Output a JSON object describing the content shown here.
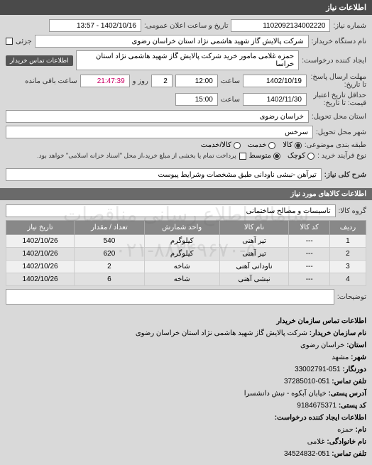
{
  "watermark": {
    "line1": "سامانه اطلاع رسانی مناقصات",
    "line2": "۰۲۱-۸۸۳۴۹۶۷۰-۵"
  },
  "header": {
    "title": "اطلاعات نیاز"
  },
  "top": {
    "need_number_label": "شماره نیاز:",
    "need_number": "1102092134002220",
    "announce_label": "تاریخ و ساعت اعلان عمومی:",
    "announce_value": "1402/10/16 - 13:57",
    "buyer_label": "نام دستگاه خریدار:",
    "buyer_value": "شرکت پالایش گاز شهید هاشمی نژاد    استان خراسان رضوی",
    "partial_label": "جزئی",
    "requester_label": "ایجاد کننده درخواست:",
    "requester_value": "حمزه غلامی مامور خرید شرکت پالایش گاز شهید هاشمی نژاد    استان خراسا",
    "buyer_contact_tag": "اطلاعات تماس خریدار",
    "deadline_recv_label": "مهلت ارسال پاسخ: تا تاریخ:",
    "deadline_recv_date": "1402/10/19",
    "time_label": "ساعت",
    "deadline_recv_time": "12:00",
    "days_label": "روز و",
    "days_value": "2",
    "remain_label": "ساعت باقی مانده",
    "remain_value": "21:47:39",
    "valid_until_label": "حداقل تاریخ اعتبار قیمت: تا تاریخ:",
    "valid_until_date": "1402/11/30",
    "valid_until_time": "15:00",
    "delivery_province_label": "استان محل تحویل:",
    "delivery_province": "خراسان رضوی",
    "delivery_city_label": "شهر محل تحویل:",
    "delivery_city": "سرخس",
    "category_label": "طبقه بندی موضوعی:",
    "cat_goods": "کالا",
    "cat_service": "خدمت",
    "cat_both": "کالا/خدمت",
    "purchase_type_label": "نوع فرآیند خرید :",
    "pt_small": "کوچک",
    "pt_medium": "متوسط",
    "pt_note": "پرداخت تمام یا بخشی از مبلغ خرید،از محل \"اسناد خزانه اسلامی\" خواهد بود.",
    "desc_label": "شرح کلی نیاز:",
    "desc_value": "تیرآهن -نبشی ناودانی طبق مشخصات وشرایط پیوست"
  },
  "goods_header": "اطلاعات کالاهای مورد نیاز",
  "group_label": "گروه کالا:",
  "group_value": "تاسیسات و مصالح ساختمانی",
  "table": {
    "columns": [
      "ردیف",
      "کد کالا",
      "نام کالا",
      "واحد شمارش",
      "تعداد / مقدار",
      "تاریخ نیاز"
    ],
    "rows": [
      [
        "1",
        "---",
        "تیر آهنی",
        "کیلوگرم",
        "540",
        "1402/10/26"
      ],
      [
        "2",
        "---",
        "تیر آهنی",
        "کیلوگرم",
        "620",
        "1402/10/26"
      ],
      [
        "3",
        "---",
        "ناودانی آهنی",
        "شاخه",
        "2",
        "1402/10/26"
      ],
      [
        "4",
        "---",
        "نبشی آهنی",
        "شاخه",
        "6",
        "1402/10/26"
      ]
    ]
  },
  "desc2_label": "توضیحات:",
  "footer": {
    "header": "اطلاعات تماس سازمان خریدار",
    "org_label": "نام سازمان خریدار:",
    "org": "شرکت پالایش گاز شهید هاشمی نژاد استان خراسان رضوی",
    "province_label": "استان:",
    "province": "خراسان رضوی",
    "city_label": "شهر:",
    "city": "مشهد",
    "fax_label": "دورنگار:",
    "fax": "051-33002791",
    "phone_label": "تلفن تماس:",
    "phone": "051-37285010",
    "address_label": "آدرس پستی:",
    "address": "خیابان آبکوه - نبش دانشسرا",
    "postal_label": "کد پستی:",
    "postal": "9184675371",
    "req_creator_header": "اطلاعات ایجاد کننده درخواست:",
    "name_label": "نام:",
    "name": "حمزه",
    "lname_label": "نام خانوادگی:",
    "lname": "غلامی",
    "rphone_label": "تلفن تماس:",
    "rphone": "051-34524832"
  }
}
